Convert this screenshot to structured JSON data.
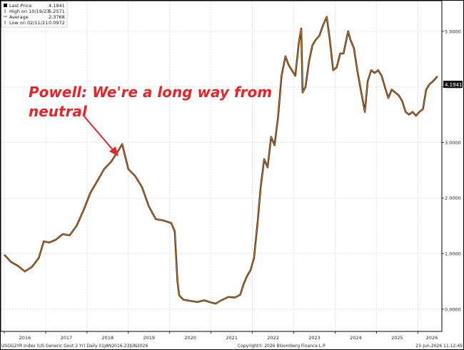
{
  "legend": {
    "items": [
      {
        "label": "Last Price",
        "value": "4.1941",
        "icon": "black-square"
      },
      {
        "label": "High on 10/19/23",
        "value": "5.2571",
        "icon": "up-tick"
      },
      {
        "label": "Average",
        "value": "2.3768",
        "icon": "dash"
      },
      {
        "label": "Low on 02/11/21",
        "value": "0.0972",
        "icon": "down-tick"
      }
    ]
  },
  "annotation": {
    "line1": "Powell: We're a long way from",
    "line2": "neutral",
    "color": "#e8232a"
  },
  "last_price_tag": "4.1941",
  "footer": {
    "left": "USGG2YR Index (US Generic Govt 2 Yr) Daily 01JAN2016-23JUN2026",
    "center": "Copyright© 2026 Bloomberg Finance L.P.",
    "right": "23-Jun-2026 11:12:49"
  },
  "chart_data": {
    "type": "line",
    "series": [
      {
        "name": "USGG2YR Index",
        "color": "#e07b1a",
        "x": [
          "2016-01-01",
          "2016-03-01",
          "2016-05-01",
          "2016-07-01",
          "2016-09-01",
          "2016-11-01",
          "2016-12-15",
          "2017-02-01",
          "2017-04-01",
          "2017-06-01",
          "2017-08-01",
          "2017-10-01",
          "2017-12-01",
          "2018-02-01",
          "2018-04-01",
          "2018-06-01",
          "2018-08-01",
          "2018-10-01",
          "2018-11-08",
          "2019-01-01",
          "2019-03-01",
          "2019-05-01",
          "2019-07-01",
          "2019-09-01",
          "2019-11-01",
          "2020-01-15",
          "2020-02-15",
          "2020-03-10",
          "2020-03-25",
          "2020-05-01",
          "2020-07-01",
          "2020-09-01",
          "2020-11-01",
          "2021-01-01",
          "2021-02-11",
          "2021-04-01",
          "2021-06-01",
          "2021-08-01",
          "2021-09-15",
          "2021-10-15",
          "2021-11-15",
          "2021-12-15",
          "2022-01-15",
          "2022-02-15",
          "2022-03-15",
          "2022-04-15",
          "2022-05-15",
          "2022-06-15",
          "2022-07-15",
          "2022-08-15",
          "2022-09-15",
          "2022-10-20",
          "2022-11-15",
          "2022-12-15",
          "2023-01-15",
          "2023-02-15",
          "2023-03-08",
          "2023-03-20",
          "2023-04-15",
          "2023-05-15",
          "2023-06-15",
          "2023-07-15",
          "2023-08-15",
          "2023-09-15",
          "2023-10-19",
          "2023-11-15",
          "2023-12-15",
          "2024-01-15",
          "2024-02-15",
          "2024-03-15",
          "2024-04-25",
          "2024-05-15",
          "2024-06-15",
          "2024-07-15",
          "2024-08-15",
          "2024-09-20",
          "2024-10-15",
          "2024-11-15",
          "2024-12-15",
          "2025-01-15",
          "2025-02-15",
          "2025-03-15",
          "2025-04-15",
          "2025-05-15",
          "2025-06-15",
          "2025-07-15",
          "2025-08-15",
          "2025-09-15",
          "2025-10-15",
          "2025-11-15",
          "2025-12-15",
          "2026-01-15",
          "2026-02-15",
          "2026-03-15",
          "2026-04-15",
          "2026-05-15",
          "2026-06-23"
        ],
        "y": [
          0.98,
          0.85,
          0.78,
          0.68,
          0.76,
          0.92,
          1.22,
          1.2,
          1.25,
          1.35,
          1.33,
          1.5,
          1.78,
          2.1,
          2.3,
          2.52,
          2.65,
          2.84,
          2.97,
          2.52,
          2.4,
          2.2,
          1.85,
          1.62,
          1.6,
          1.55,
          1.4,
          0.5,
          0.25,
          0.17,
          0.15,
          0.13,
          0.16,
          0.12,
          0.1,
          0.16,
          0.22,
          0.21,
          0.26,
          0.45,
          0.6,
          0.7,
          0.92,
          1.55,
          2.2,
          2.7,
          2.55,
          3.1,
          2.95,
          3.45,
          4.2,
          4.55,
          4.4,
          4.3,
          4.2,
          4.8,
          5.05,
          3.9,
          4.0,
          4.45,
          4.75,
          4.85,
          4.92,
          5.1,
          5.26,
          4.85,
          4.3,
          4.35,
          4.6,
          4.6,
          5.0,
          4.85,
          4.7,
          4.3,
          3.95,
          3.55,
          4.1,
          4.3,
          4.25,
          4.3,
          4.2,
          4.0,
          3.8,
          3.95,
          3.9,
          3.85,
          3.75,
          3.55,
          3.5,
          3.55,
          3.48,
          3.55,
          3.6,
          3.95,
          4.05,
          4.1,
          4.19
        ]
      }
    ],
    "x_tick_labels": [
      "2016",
      "2017",
      "2018",
      "2019",
      "2020",
      "2021",
      "2022",
      "2023",
      "2024",
      "2025",
      "2026"
    ],
    "y_tick_labels": [
      "0.0000",
      "1.0000",
      "2.0000",
      "3.0000",
      "4.0000",
      "5.0000"
    ],
    "ylim": [
      -0.4,
      5.55
    ],
    "xlim": [
      "2015-12-01",
      "2026-08-01"
    ],
    "grid": true,
    "y_axis_side": "right",
    "legend_placement": "top-left"
  }
}
